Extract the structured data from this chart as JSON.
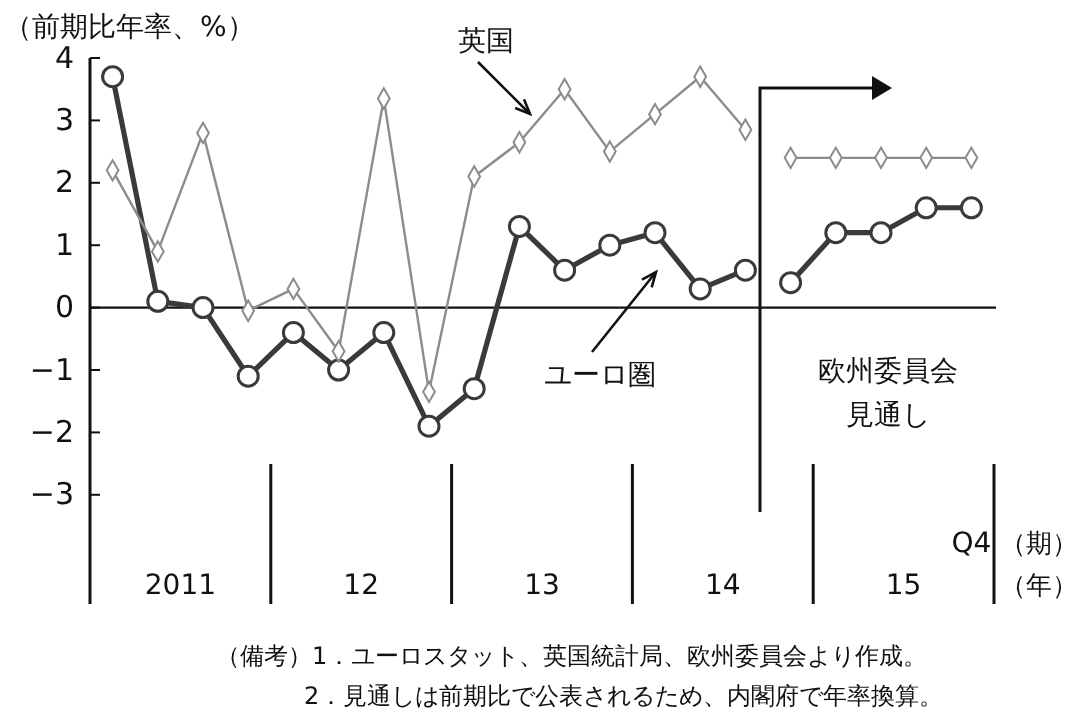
{
  "chart_data": {
    "type": "line",
    "ylabel": "（前期比年率、%）",
    "xlabel": "（期）",
    "categories": [
      null,
      null,
      null,
      null,
      null,
      null,
      null,
      null,
      null,
      null,
      null,
      null,
      null,
      null,
      null,
      null,
      null,
      null,
      null,
      "Q4"
    ],
    "series": [
      {
        "name": "ユーロ圏",
        "color": "#3a3a3a",
        "marker": "circle",
        "values": [
          3.7,
          0.1,
          0.0,
          -1.1,
          -0.4,
          -1.0,
          -0.4,
          -1.9,
          -1.3,
          1.3,
          0.6,
          1.0,
          1.2,
          0.3,
          0.6,
          null,
          null,
          null,
          null,
          null
        ]
      },
      {
        "color": "#3a3a3a",
        "marker": "circle",
        "values": [
          null,
          null,
          null,
          null,
          null,
          null,
          null,
          null,
          null,
          null,
          null,
          null,
          null,
          null,
          null,
          0.4,
          1.2,
          1.2,
          1.6,
          1.6
        ]
      },
      {
        "name": "英国",
        "color": "#8c8c8c",
        "marker": "diamond",
        "values": [
          2.2,
          0.9,
          2.8,
          -0.05,
          0.3,
          -0.7,
          3.35,
          -1.35,
          2.1,
          2.65,
          3.5,
          2.5,
          3.1,
          3.7,
          2.85,
          null,
          null,
          null,
          null,
          null
        ]
      },
      {
        "color": "#8c8c8c",
        "marker": "diamond",
        "values": [
          null,
          null,
          null,
          null,
          null,
          null,
          null,
          null,
          null,
          null,
          null,
          null,
          null,
          null,
          null,
          2.4,
          2.4,
          2.4,
          2.4,
          2.4
        ]
      }
    ],
    "ylim": [
      -4.75,
      4
    ],
    "yticks": [
      -3,
      -2,
      -1,
      0,
      1,
      2,
      3,
      4
    ],
    "annotations": [
      "欧州委員会",
      "見通し",
      "2011",
      "12",
      "13",
      "14",
      "15",
      "（年）",
      "（備考）1．ユーロスタット、英国統計局、欧州委員会より作成。",
      "2．見通しは前期比で公表されるため、内閣府で年率換算。"
    ]
  }
}
